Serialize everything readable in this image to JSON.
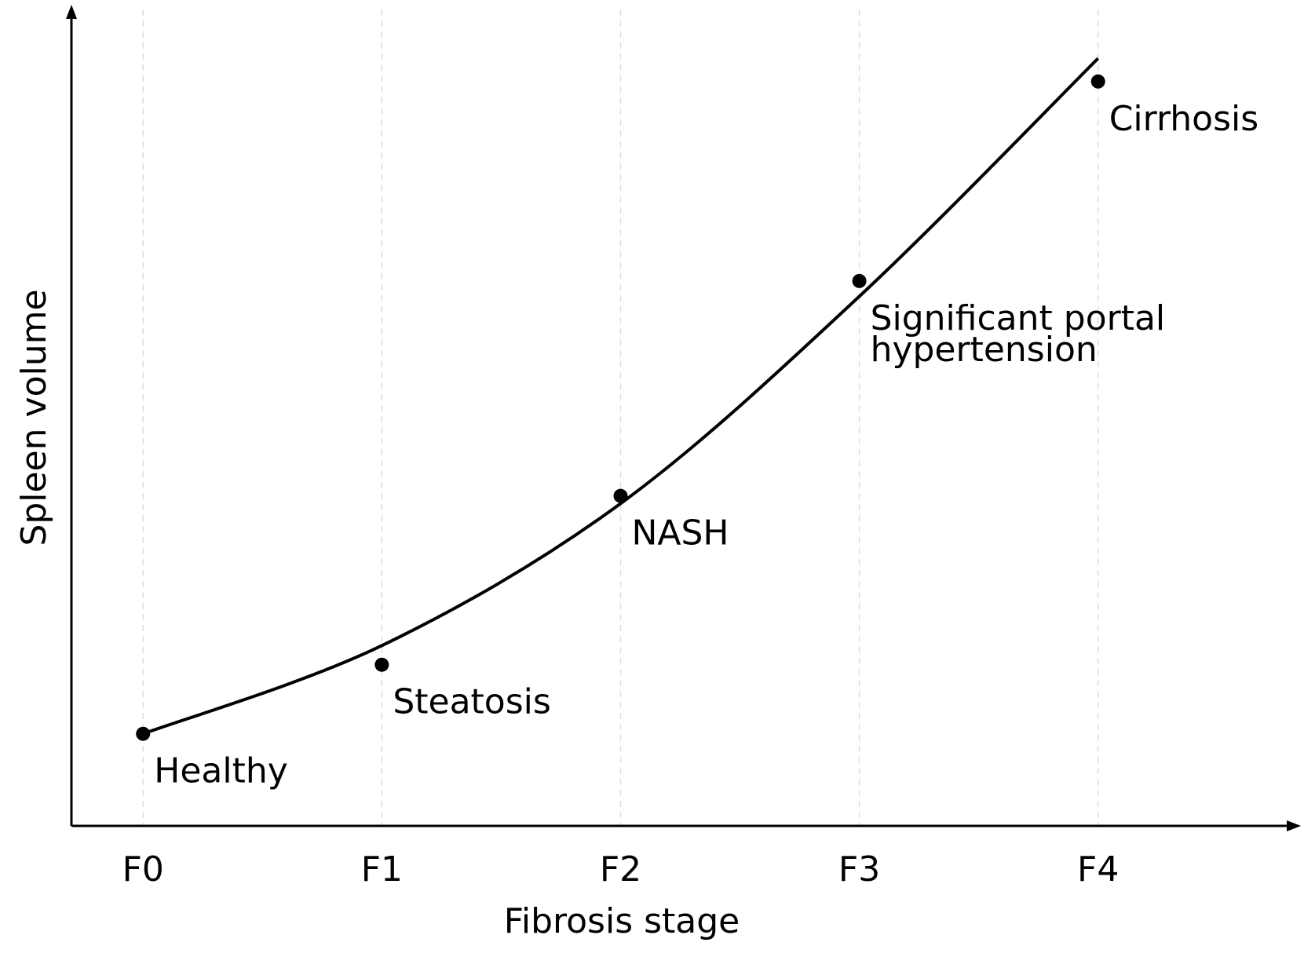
{
  "chart_data": {
    "type": "line",
    "title": "",
    "xlabel": "Fibrosis stage",
    "ylabel": "Spleen volume",
    "categories": [
      "F0",
      "F1",
      "F2",
      "F3",
      "F4"
    ],
    "points": [
      {
        "x": 0,
        "y": 0.12,
        "label": "Healthy"
      },
      {
        "x": 1,
        "y": 0.21,
        "label": "Steatosis"
      },
      {
        "x": 2,
        "y": 0.43,
        "label": "NASH"
      },
      {
        "x": 3,
        "y": 0.71,
        "label": "Significant portal hypertension"
      },
      {
        "x": 4,
        "y": 0.97,
        "label": "Cirrhosis"
      }
    ],
    "curve": {
      "x": [
        0,
        1,
        2,
        3,
        4
      ],
      "y": [
        0.12,
        0.235,
        0.42,
        0.69,
        1.0
      ]
    },
    "xlim": [
      -0.3,
      4.8
    ],
    "ylim": [
      0,
      1.07
    ],
    "grid": "vertical-dashed",
    "colors": {
      "line": "#000000",
      "point": "#000000",
      "grid": "#dddddd"
    }
  }
}
